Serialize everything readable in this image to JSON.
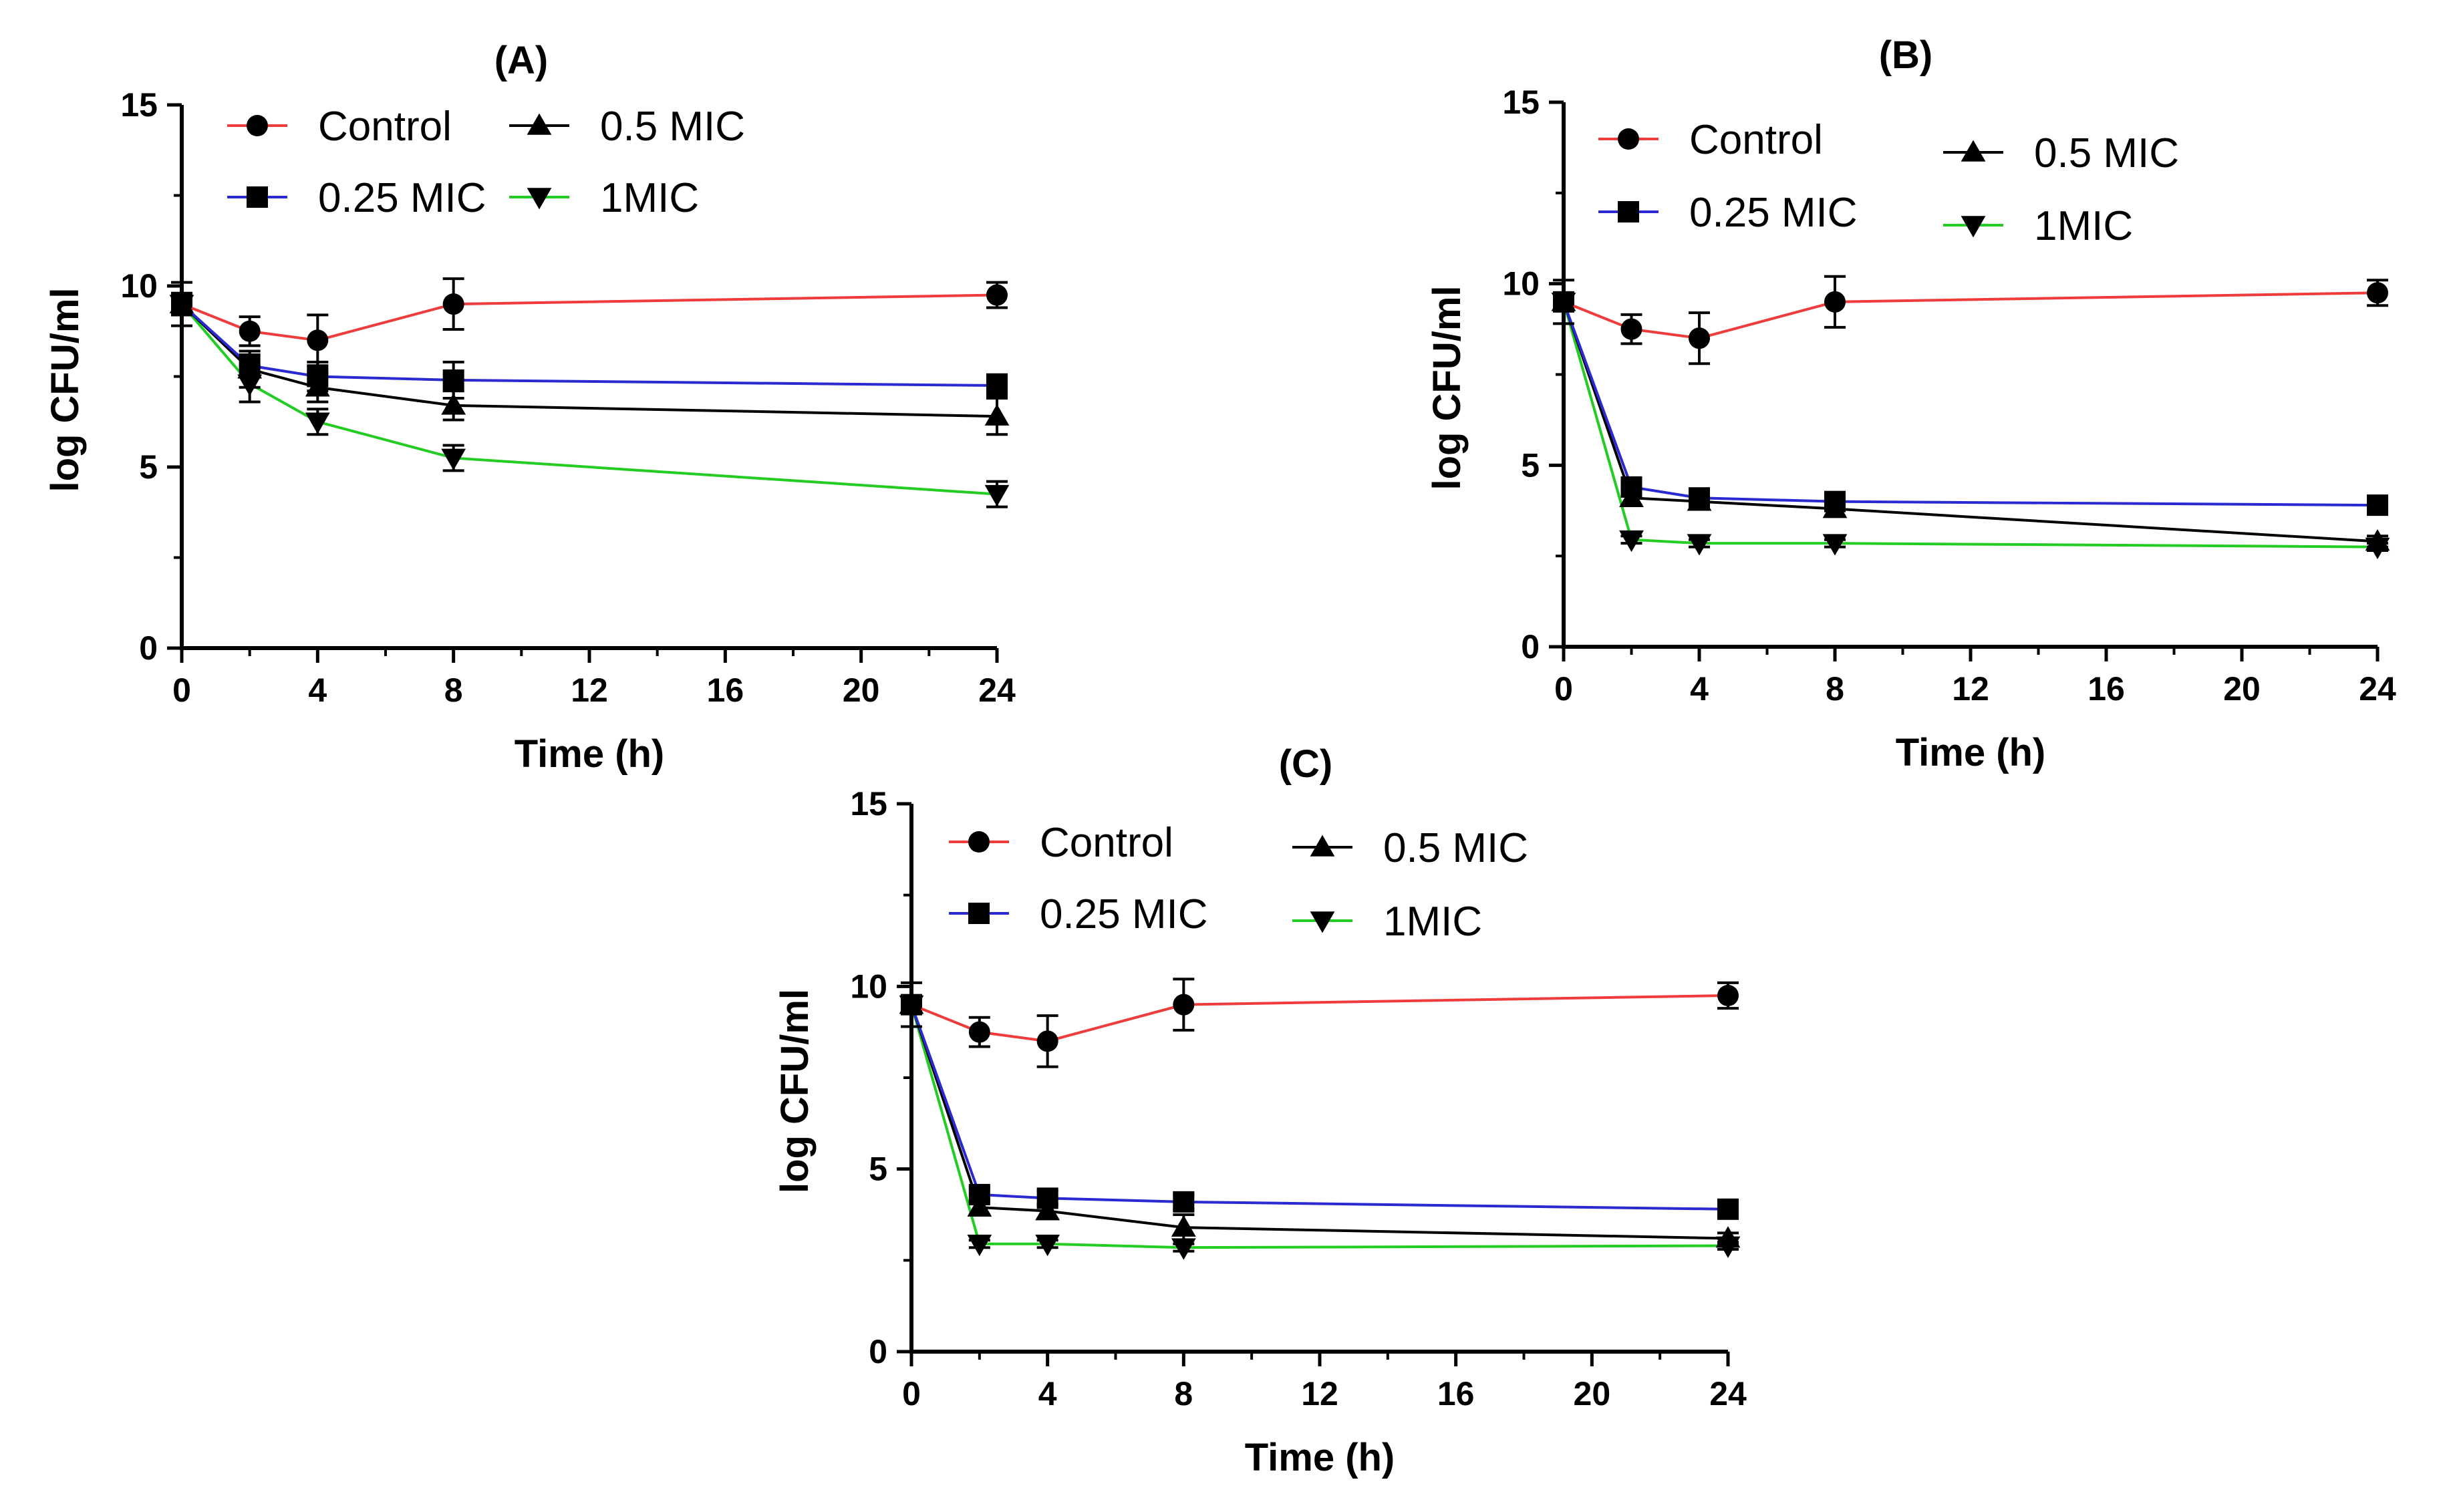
{
  "figure": {
    "series_styles": [
      {
        "name": "Control",
        "color": "#ee3b3b",
        "marker": "circle"
      },
      {
        "name": "0.25 MIC",
        "color": "#2a2ad0",
        "marker": "square"
      },
      {
        "name": "0.5 MIC",
        "color": "#000000",
        "marker": "triangle-up"
      },
      {
        "name": "1MIC",
        "color": "#22cc22",
        "marker": "triangle-down"
      }
    ],
    "axis_color": "#000000"
  },
  "chart_data": [
    {
      "type": "line",
      "title": "(A)",
      "xlabel": "Time (h)",
      "ylabel": "log CFU/ml",
      "xlim": [
        0,
        24
      ],
      "ylim": [
        0,
        15
      ],
      "xticks": [
        0,
        4,
        8,
        12,
        16,
        20,
        24
      ],
      "yticks": [
        0,
        5,
        10,
        15
      ],
      "x": [
        0,
        2,
        4,
        8,
        24
      ],
      "legend_position": "top",
      "series": [
        {
          "name": "Control",
          "values": [
            9.5,
            8.75,
            8.5,
            9.5,
            9.75
          ],
          "errors": [
            0.6,
            0.4,
            0.7,
            0.7,
            0.35
          ]
        },
        {
          "name": "0.25 MIC",
          "values": [
            9.5,
            7.8,
            7.5,
            7.4,
            7.25
          ],
          "errors": [
            0.3,
            0.3,
            0.4,
            0.5,
            0.3
          ]
        },
        {
          "name": "0.5 MIC",
          "values": [
            9.5,
            7.7,
            7.2,
            6.7,
            6.4
          ],
          "errors": [
            0.3,
            0.5,
            0.4,
            0.4,
            0.5
          ]
        },
        {
          "name": "1MIC",
          "values": [
            9.5,
            7.3,
            6.25,
            5.25,
            4.25
          ],
          "errors": [
            0.3,
            0.5,
            0.35,
            0.35,
            0.35
          ]
        }
      ]
    },
    {
      "type": "line",
      "title": "(B)",
      "xlabel": "Time (h)",
      "ylabel": "log CFU/ml",
      "xlim": [
        0,
        24
      ],
      "ylim": [
        0,
        15
      ],
      "xticks": [
        0,
        4,
        8,
        12,
        16,
        20,
        24
      ],
      "yticks": [
        0,
        5,
        10,
        15
      ],
      "x": [
        0,
        2,
        4,
        8,
        24
      ],
      "legend_position": "top",
      "series": [
        {
          "name": "Control",
          "values": [
            9.5,
            8.75,
            8.5,
            9.5,
            9.75
          ],
          "errors": [
            0.6,
            0.4,
            0.7,
            0.7,
            0.35
          ]
        },
        {
          "name": "0.25 MIC",
          "values": [
            9.5,
            4.4,
            4.1,
            4.0,
            3.9
          ],
          "errors": [
            0.2,
            0.2,
            0.2,
            0.2,
            0.15
          ]
        },
        {
          "name": "0.5 MIC",
          "values": [
            9.5,
            4.1,
            4.0,
            3.8,
            2.9
          ],
          "errors": [
            0.2,
            0.2,
            0.2,
            0.2,
            0.15
          ]
        },
        {
          "name": "1MIC",
          "values": [
            9.5,
            2.95,
            2.85,
            2.85,
            2.75
          ],
          "errors": [
            0.2,
            0.1,
            0.1,
            0.1,
            0.1
          ]
        }
      ]
    },
    {
      "type": "line",
      "title": "(C)",
      "xlabel": "Time (h)",
      "ylabel": "log CFU/ml",
      "xlim": [
        0,
        24
      ],
      "ylim": [
        0,
        15
      ],
      "xticks": [
        0,
        4,
        8,
        12,
        16,
        20,
        24
      ],
      "yticks": [
        0,
        5,
        10,
        15
      ],
      "x": [
        0,
        2,
        4,
        8,
        24
      ],
      "legend_position": "top",
      "series": [
        {
          "name": "Control",
          "values": [
            9.5,
            8.75,
            8.5,
            9.5,
            9.75
          ],
          "errors": [
            0.6,
            0.4,
            0.7,
            0.7,
            0.35
          ]
        },
        {
          "name": "0.25 MIC",
          "values": [
            9.5,
            4.3,
            4.2,
            4.1,
            3.9
          ],
          "errors": [
            0.2,
            0.2,
            0.2,
            0.2,
            0.15
          ]
        },
        {
          "name": "0.5 MIC",
          "values": [
            9.5,
            3.95,
            3.85,
            3.4,
            3.1
          ],
          "errors": [
            0.2,
            0.2,
            0.2,
            0.35,
            0.15
          ]
        },
        {
          "name": "1MIC",
          "values": [
            9.5,
            2.95,
            2.95,
            2.85,
            2.9
          ],
          "errors": [
            0.2,
            0.1,
            0.1,
            0.1,
            0.1
          ]
        }
      ]
    }
  ]
}
